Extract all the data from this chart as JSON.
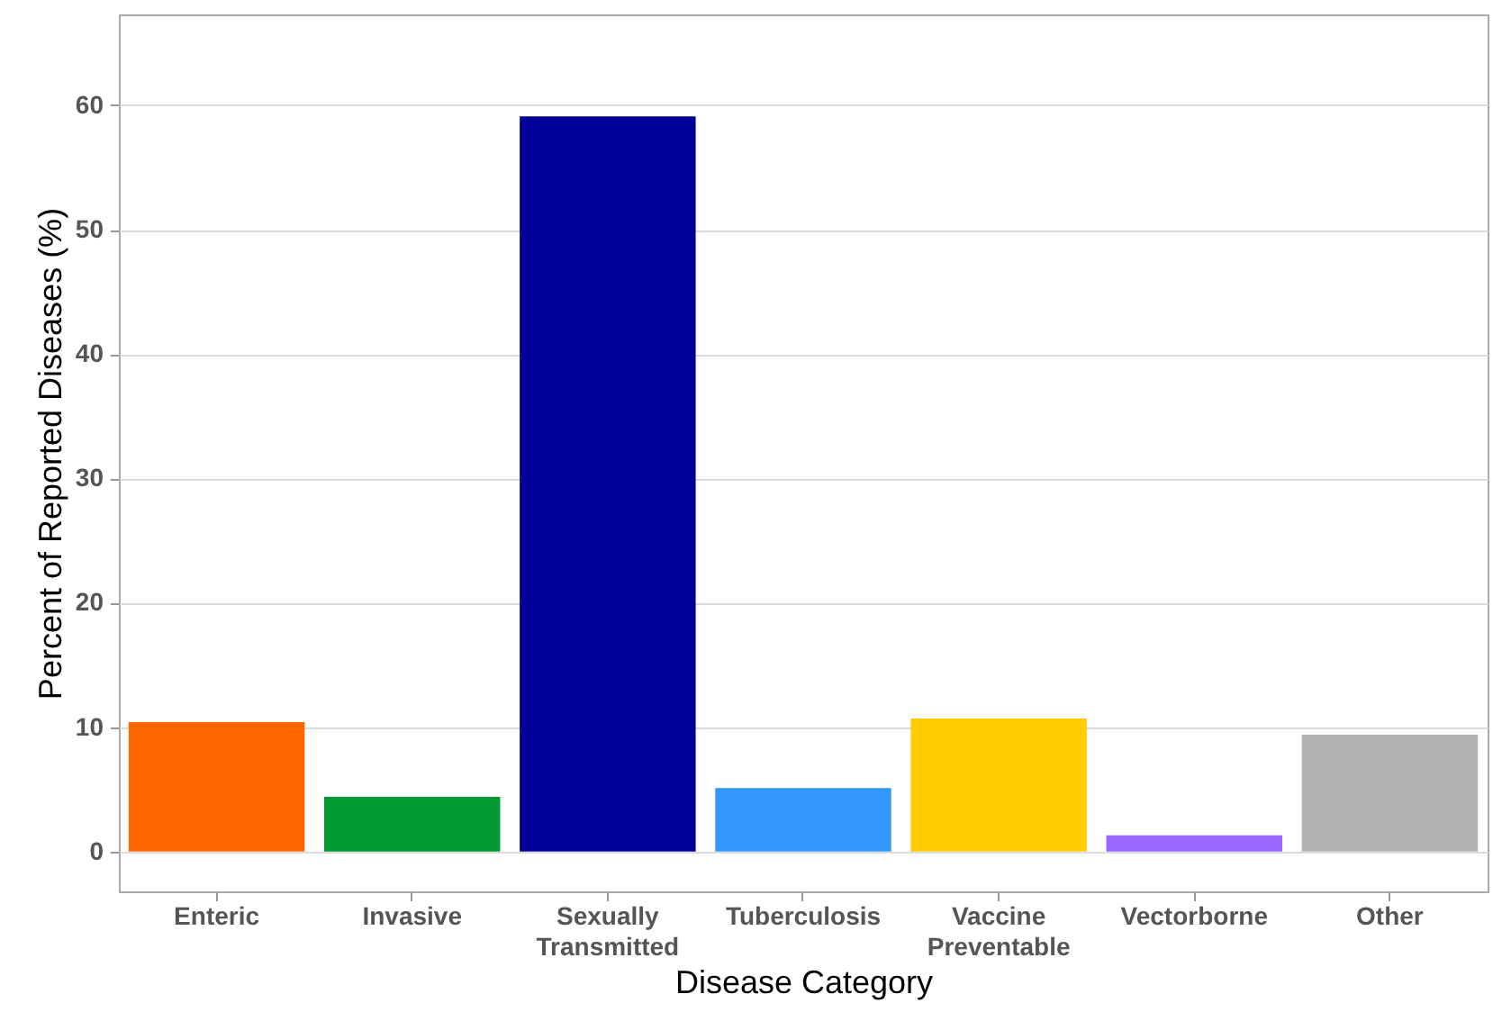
{
  "chart_data": {
    "type": "bar",
    "xlabel": "Disease Category",
    "ylabel": "Percent of Reported Diseases (%)",
    "categories": [
      "Enteric",
      "Invasive",
      "Sexually Transmitted",
      "Tuberculosis",
      "Vaccine Preventable",
      "Vectorborne",
      "Other"
    ],
    "values": [
      10.4,
      4.4,
      59.1,
      5.1,
      10.7,
      1.3,
      9.4
    ],
    "colors": [
      "#ff6600",
      "#009933",
      "#000099",
      "#3399ff",
      "#ffcc00",
      "#9966ff",
      "#b3b3b3"
    ],
    "ylim": [
      -3.2,
      67.3
    ],
    "yticks": [
      0,
      10,
      20,
      30,
      40,
      50,
      60
    ],
    "grid": "y"
  }
}
